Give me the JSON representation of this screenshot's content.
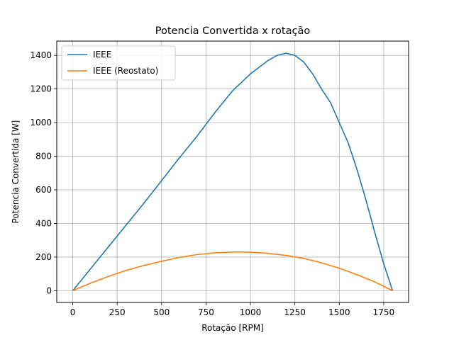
{
  "chart_data": {
    "type": "line",
    "title": "Potencia Convertida x rotação",
    "xlabel": "Rotação [RPM]",
    "ylabel": "Potencia Convertida [W]",
    "xlim": [
      -90,
      1890
    ],
    "ylim": [
      -70,
      1485
    ],
    "xticks": [
      0,
      250,
      500,
      750,
      1000,
      1250,
      1500,
      1750
    ],
    "yticks": [
      0,
      200,
      400,
      600,
      800,
      1000,
      1200,
      1400
    ],
    "grid": true,
    "legend_position": "upper-left",
    "series": [
      {
        "name": "IEEE",
        "color": "#1f77b4",
        "x": [
          0,
          100,
          200,
          300,
          400,
          500,
          600,
          700,
          800,
          900,
          1000,
          1100,
          1150,
          1200,
          1250,
          1300,
          1350,
          1400,
          1450,
          1500,
          1550,
          1600,
          1650,
          1700,
          1750,
          1800
        ],
        "y": [
          0,
          130,
          260,
          390,
          520,
          655,
          790,
          920,
          1060,
          1190,
          1290,
          1370,
          1400,
          1413,
          1400,
          1360,
          1290,
          1200,
          1120,
          1000,
          880,
          720,
          540,
          345,
          160,
          0
        ]
      },
      {
        "name": "IEEE (Reostato)",
        "color": "#ff7f0e",
        "x": [
          0,
          100,
          200,
          300,
          400,
          500,
          600,
          700,
          800,
          900,
          950,
          1000,
          1100,
          1200,
          1300,
          1400,
          1500,
          1600,
          1700,
          1800
        ],
        "y": [
          0,
          45,
          85,
          120,
          150,
          175,
          198,
          215,
          225,
          230,
          230,
          229,
          222,
          210,
          192,
          166,
          134,
          95,
          52,
          0
        ]
      }
    ]
  }
}
